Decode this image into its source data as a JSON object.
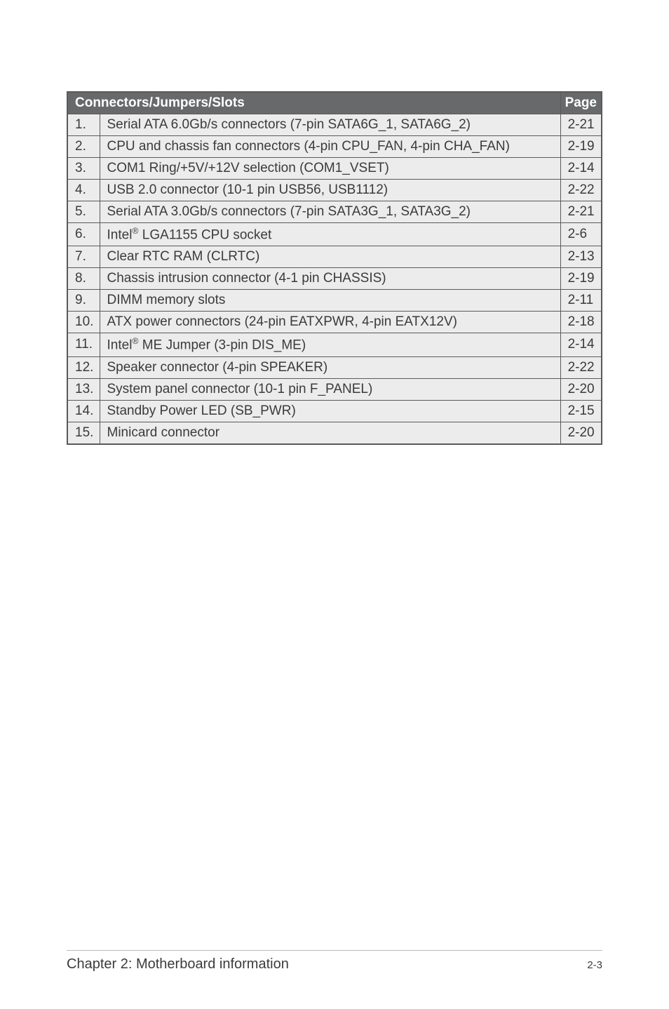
{
  "table": {
    "header": {
      "title": "Connectors/Jumpers/Slots",
      "page_label": "Page"
    },
    "header_bg": "#67696b",
    "header_fg": "#ffffff",
    "row_bg": "#ececec",
    "row_fg": "#3a3b3c",
    "border_color": "#5a5a5a",
    "rows": [
      {
        "num": "1.",
        "desc": "Serial ATA 6.0Gb/s connectors (7-pin SATA6G_1, SATA6G_2)",
        "page": "2-21",
        "sup": null
      },
      {
        "num": "2.",
        "desc": "CPU and chassis fan connectors (4-pin CPU_FAN, 4-pin CHA_FAN)",
        "page": "2-19",
        "sup": null
      },
      {
        "num": "3.",
        "desc": "COM1 Ring/+5V/+12V selection (COM1_VSET)",
        "page": "2-14",
        "sup": null
      },
      {
        "num": "4.",
        "desc": "USB 2.0 connector (10-1 pin USB56, USB1112)",
        "page": "2-22",
        "sup": null
      },
      {
        "num": "5.",
        "desc": "Serial ATA 3.0Gb/s connectors (7-pin SATA3G_1, SATA3G_2)",
        "page": "2-21",
        "sup": null
      },
      {
        "num": "6.",
        "desc": "Intel® LGA1155 CPU socket",
        "page": "2-6",
        "sup": {
          "before": "Intel",
          "mark": "®",
          "after": " LGA1155 CPU socket"
        }
      },
      {
        "num": "7.",
        "desc": "Clear RTC RAM (CLRTC)",
        "page": "2-13",
        "sup": null
      },
      {
        "num": "8.",
        "desc": "Chassis intrusion connector (4-1 pin CHASSIS)",
        "page": "2-19",
        "sup": null
      },
      {
        "num": "9.",
        "desc": "DIMM memory slots",
        "page": "2-11",
        "sup": null
      },
      {
        "num": "10.",
        "desc": "ATX power connectors (24-pin EATXPWR, 4-pin EATX12V)",
        "page": "2-18",
        "sup": null
      },
      {
        "num": "11.",
        "desc": "Intel® ME Jumper (3-pin DIS_ME)",
        "page": "2-14",
        "sup": {
          "before": "Intel",
          "mark": "®",
          "after": " ME Jumper (3-pin DIS_ME)"
        }
      },
      {
        "num": "12.",
        "desc": "Speaker connector (4-pin SPEAKER)",
        "page": "2-22",
        "sup": null
      },
      {
        "num": "13.",
        "desc": "System panel connector (10-1 pin F_PANEL)",
        "page": "2-20",
        "sup": null
      },
      {
        "num": "14.",
        "desc": "Standby Power LED (SB_PWR)",
        "page": "2-15",
        "sup": null
      },
      {
        "num": "15.",
        "desc": "Minicard connector",
        "page": "2-20",
        "sup": null
      }
    ]
  },
  "footer": {
    "left": "Chapter 2: Motherboard information",
    "right": "2-3"
  }
}
